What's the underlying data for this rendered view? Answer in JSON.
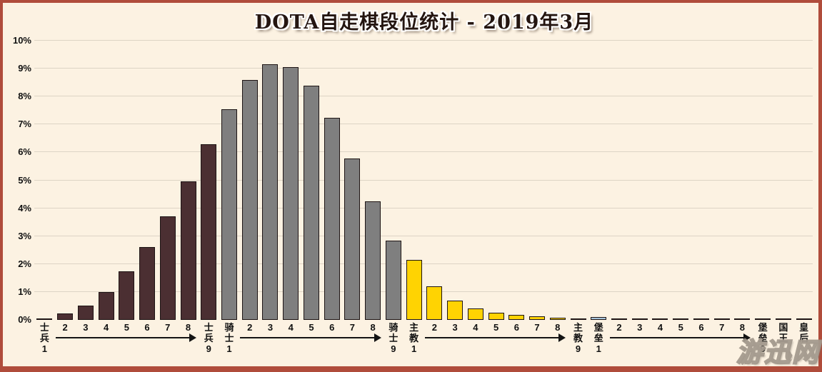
{
  "page": {
    "background": "#fcf2e2",
    "frame_color": "#b04c3b",
    "watermark": "游迅网"
  },
  "chart_data": {
    "type": "bar",
    "title": "DOTA自走棋段位统计 - 2019年3月",
    "xlabel": "",
    "ylabel": "",
    "ylim": [
      0,
      10
    ],
    "ytick_step": 1,
    "yticks": [
      "0%",
      "1%",
      "2%",
      "3%",
      "4%",
      "5%",
      "6%",
      "7%",
      "8%",
      "9%",
      "10%"
    ],
    "grid": true,
    "legend": "none",
    "bar_outline_color": "#1d1414",
    "gridline_color": "#ddd4c5",
    "groups": [
      {
        "name": "士兵",
        "color": "#4b2f32",
        "levels": [
          "1",
          "2",
          "3",
          "4",
          "5",
          "6",
          "7",
          "8",
          "9"
        ],
        "values": [
          0.05,
          0.22,
          0.5,
          1.0,
          1.73,
          2.6,
          3.7,
          4.95,
          6.3
        ]
      },
      {
        "name": "骑士",
        "color": "#7f7f7f",
        "levels": [
          "1",
          "2",
          "3",
          "4",
          "5",
          "6",
          "7",
          "8",
          "9"
        ],
        "values": [
          7.55,
          8.6,
          9.15,
          9.05,
          8.4,
          7.25,
          5.78,
          4.25,
          2.85
        ]
      },
      {
        "name": "主教",
        "color": "#ffd302",
        "levels": [
          "1",
          "2",
          "3",
          "4",
          "5",
          "6",
          "7",
          "8",
          "9"
        ],
        "values": [
          2.15,
          1.2,
          0.7,
          0.42,
          0.26,
          0.18,
          0.12,
          0.07,
          0.05
        ]
      },
      {
        "name": "堡垒",
        "color": "#a9c6dd",
        "levels": [
          "1",
          "2",
          "3",
          "4",
          "5",
          "6",
          "7",
          "8",
          "9"
        ],
        "values": [
          0.1,
          0.04,
          0.02,
          0.02,
          0.02,
          0.02,
          0.02,
          0.02,
          0.02
        ]
      },
      {
        "name": "国王",
        "color": "#a9c6dd",
        "levels": [
          ""
        ],
        "values": [
          0.02
        ]
      },
      {
        "name": "皇后",
        "color": "#a9c6dd",
        "levels": [
          ""
        ],
        "values": [
          0.02
        ]
      }
    ]
  }
}
